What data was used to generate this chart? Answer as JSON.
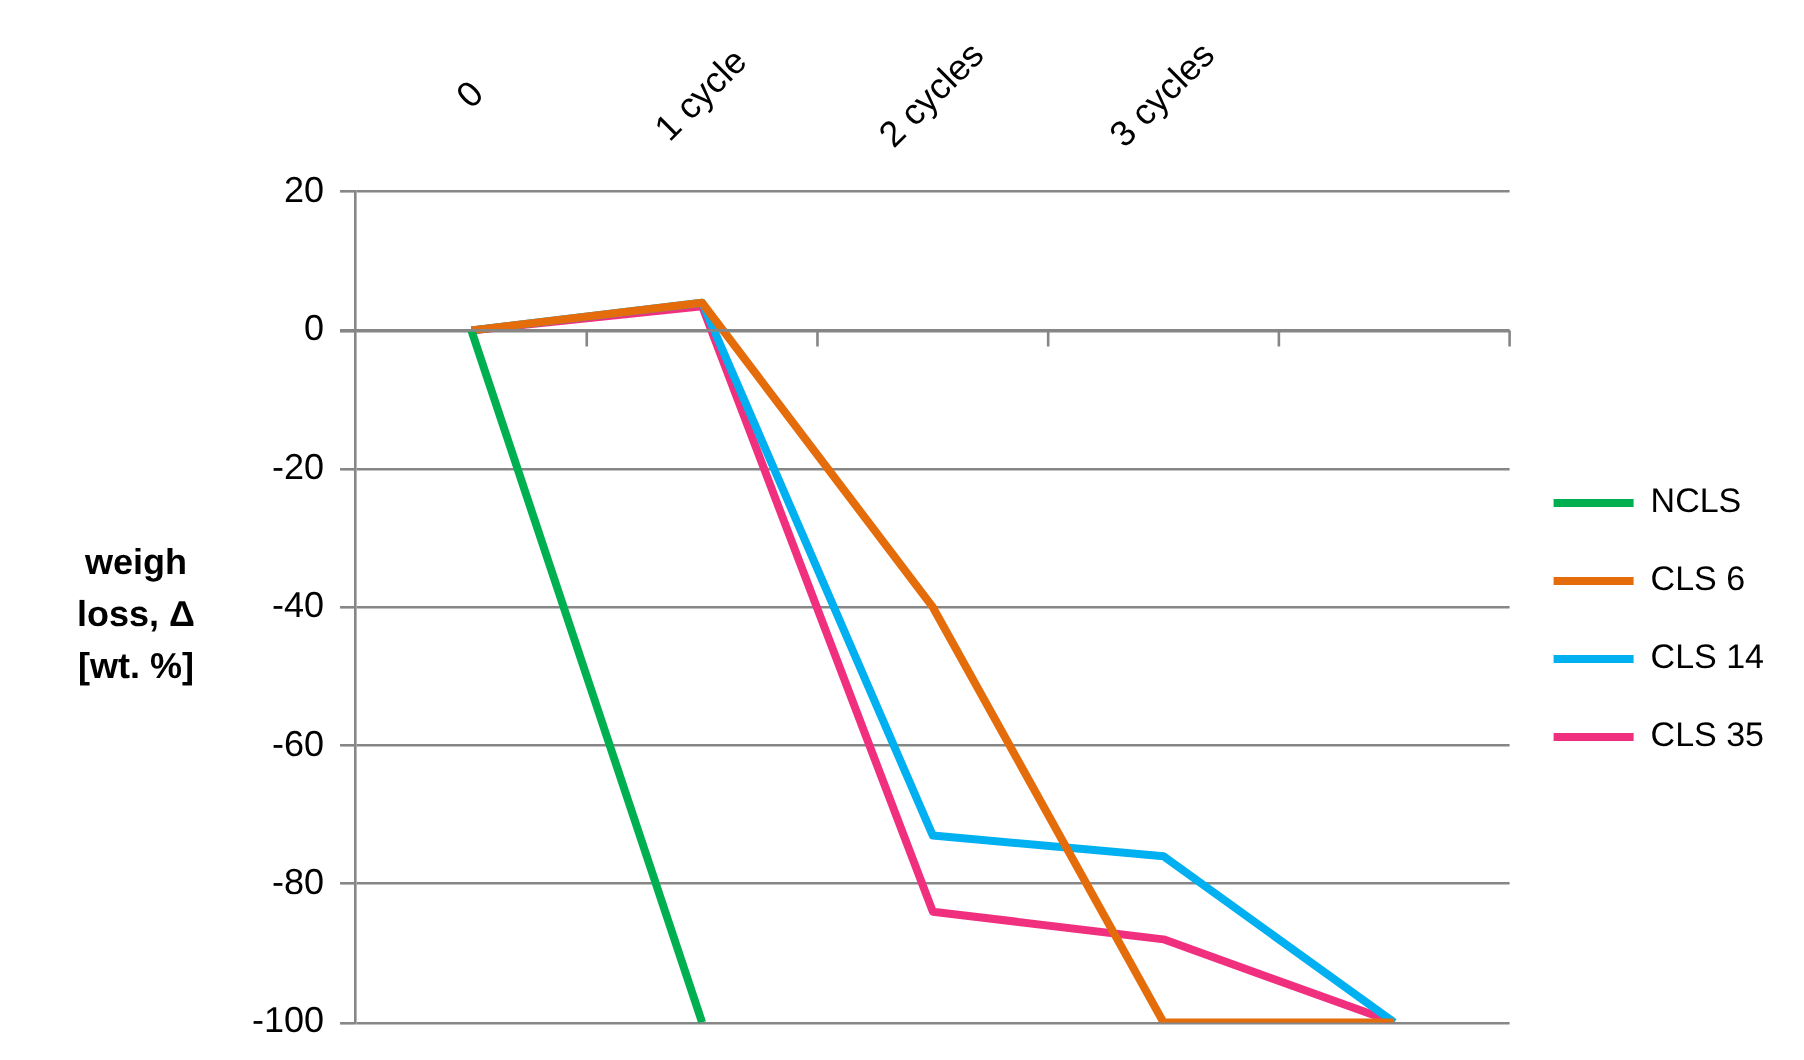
{
  "chart_data": {
    "type": "line",
    "ylabel": "weigh loss, Δ [wt. %]",
    "categories": [
      "0",
      "1 cycle",
      "2 cycles",
      "3 cycles",
      null
    ],
    "series": [
      {
        "name": "NCLS",
        "color": "#00b050",
        "values": [
          0,
          -100,
          null,
          null,
          null
        ]
      },
      {
        "name": "CLS 6",
        "color": "#e46c0a",
        "values": [
          0,
          4,
          -40,
          -100,
          -100
        ]
      },
      {
        "name": "CLS 14",
        "color": "#00b0f0",
        "values": [
          0,
          4,
          -73,
          -76,
          -100
        ]
      },
      {
        "name": "CLS 35",
        "color": "#f0307f",
        "values": [
          0,
          3.5,
          -84,
          -88,
          -100
        ]
      }
    ],
    "ylim": [
      -100,
      20
    ],
    "yticks": [
      -100,
      -80,
      -60,
      -40,
      -20,
      0,
      20
    ],
    "grid": "y",
    "legend": "right",
    "marker": "none",
    "line_style": "solid"
  }
}
